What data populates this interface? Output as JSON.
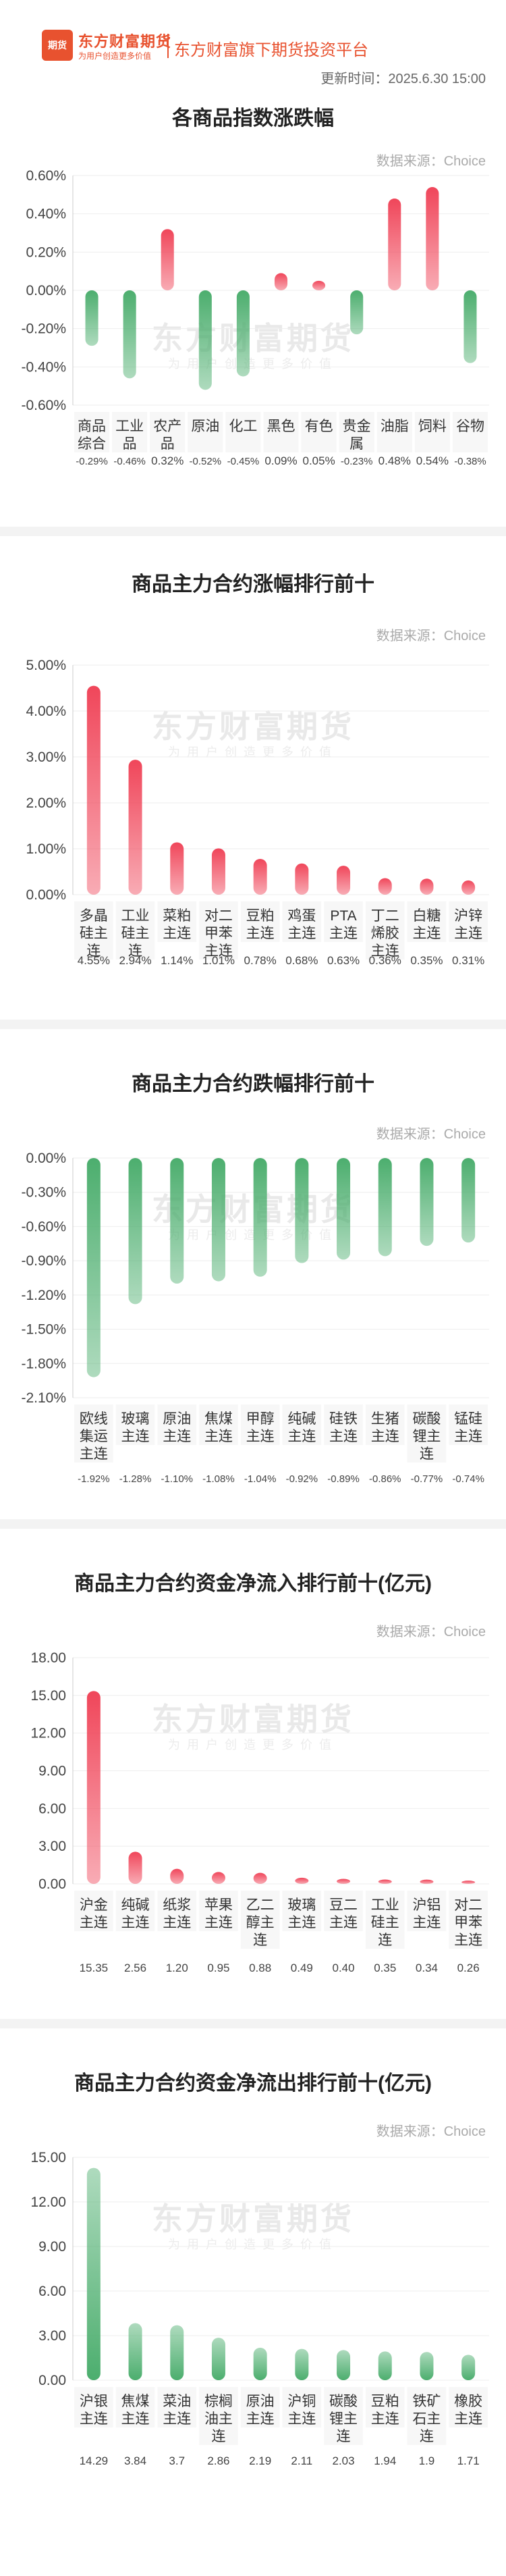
{
  "header": {
    "logo_text": "期货",
    "brand": "东方财富期货",
    "brand_sub": "为用户创造更多价值",
    "platform": "东方财富旗下期货投资平台",
    "update_time": "更新时间：2025.6.30 15:00"
  },
  "watermark": {
    "main": "东方财富期货",
    "sub": "为用户创造更多价值"
  },
  "colors": {
    "up": "#f0465a",
    "down": "#4cae6e"
  },
  "chart_data": [
    {
      "type": "bar",
      "title": "各商品指数涨跌幅",
      "source": "数据来源：Choice",
      "categories": [
        "商品综合",
        "工业品",
        "农产品",
        "原油",
        "化工",
        "黑色",
        "有色",
        "贵金属",
        "油脂",
        "饲料",
        "谷物"
      ],
      "values": [
        -0.29,
        -0.46,
        0.32,
        -0.52,
        -0.45,
        0.09,
        0.05,
        -0.23,
        0.48,
        0.54,
        -0.38
      ],
      "value_labels": [
        "-0.29%",
        "-0.46%",
        "0.32%",
        "-0.52%",
        "-0.45%",
        "0.09%",
        "0.05%",
        "-0.23%",
        "0.48%",
        "0.54%",
        "-0.38%"
      ],
      "yticks": [
        "0.60%",
        "0.40%",
        "0.20%",
        "0.00%",
        "-0.20%",
        "-0.40%",
        "-0.60%"
      ],
      "ylim": [
        -0.6,
        0.6
      ]
    },
    {
      "type": "bar",
      "title": "商品主力合约涨幅排行前十",
      "source": "数据来源：Choice",
      "categories": [
        "多晶硅主连",
        "工业硅主连",
        "菜粕主连",
        "对二甲苯主连",
        "豆粕主连",
        "鸡蛋主连",
        "PTA主连",
        "丁二烯胶主连",
        "白糖主连",
        "沪锌主连"
      ],
      "values": [
        4.55,
        2.94,
        1.14,
        1.01,
        0.78,
        0.68,
        0.63,
        0.36,
        0.35,
        0.31
      ],
      "value_labels": [
        "4.55%",
        "2.94%",
        "1.14%",
        "1.01%",
        "0.78%",
        "0.68%",
        "0.63%",
        "0.36%",
        "0.35%",
        "0.31%"
      ],
      "yticks": [
        "5.00%",
        "4.00%",
        "3.00%",
        "2.00%",
        "1.00%",
        "0.00%"
      ],
      "ylim": [
        0,
        5
      ]
    },
    {
      "type": "bar",
      "title": "商品主力合约跌幅排行前十",
      "source": "数据来源：Choice",
      "categories": [
        "欧线集运主连",
        "玻璃主连",
        "原油主连",
        "焦煤主连",
        "甲醇主连",
        "纯碱主连",
        "硅铁主连",
        "生猪主连",
        "碳酸锂主连",
        "锰硅主连"
      ],
      "values": [
        -1.92,
        -1.28,
        -1.1,
        -1.08,
        -1.04,
        -0.92,
        -0.89,
        -0.86,
        -0.77,
        -0.74
      ],
      "value_labels": [
        "-1.92%",
        "-1.28%",
        "-1.10%",
        "-1.08%",
        "-1.04%",
        "-0.92%",
        "-0.89%",
        "-0.86%",
        "-0.77%",
        "-0.74%"
      ],
      "yticks": [
        "0.00%",
        "-0.30%",
        "-0.60%",
        "-0.90%",
        "-1.20%",
        "-1.50%",
        "-1.80%",
        "-2.10%"
      ],
      "ylim": [
        -2.1,
        0
      ]
    },
    {
      "type": "bar",
      "title": "商品主力合约资金净流入排行前十(亿元)",
      "source": "数据来源：Choice",
      "categories": [
        "沪金主连",
        "纯碱主连",
        "纸浆主连",
        "苹果主连",
        "乙二醇主连",
        "玻璃主连",
        "豆二主连",
        "工业硅主连",
        "沪铝主连",
        "对二甲苯主连"
      ],
      "values": [
        15.35,
        2.56,
        1.2,
        0.95,
        0.88,
        0.49,
        0.4,
        0.35,
        0.34,
        0.26
      ],
      "value_labels": [
        "15.35",
        "2.56",
        "1.20",
        "0.95",
        "0.88",
        "0.49",
        "0.40",
        "0.35",
        "0.34",
        "0.26"
      ],
      "yticks": [
        "18.00",
        "15.00",
        "12.00",
        "9.00",
        "6.00",
        "3.00",
        "0.00"
      ],
      "ylim": [
        0,
        18
      ]
    },
    {
      "type": "bar",
      "title": "商品主力合约资金净流出排行前十(亿元)",
      "source": "数据来源：Choice",
      "categories": [
        "沪银主连",
        "焦煤主连",
        "菜油主连",
        "棕榈油主连",
        "原油主连",
        "沪铜主连",
        "碳酸锂主连",
        "豆粕主连",
        "铁矿石主连",
        "橡胶主连"
      ],
      "values": [
        14.29,
        3.84,
        3.7,
        2.86,
        2.19,
        2.11,
        2.03,
        1.94,
        1.9,
        1.71
      ],
      "value_labels": [
        "14.29",
        "3.84",
        "3.7",
        "2.86",
        "2.19",
        "2.11",
        "2.03",
        "1.94",
        "1.9",
        "1.71"
      ],
      "yticks": [
        "15.00",
        "12.00",
        "9.00",
        "6.00",
        "3.00",
        "0.00"
      ],
      "ylim": [
        0,
        15
      ]
    }
  ]
}
